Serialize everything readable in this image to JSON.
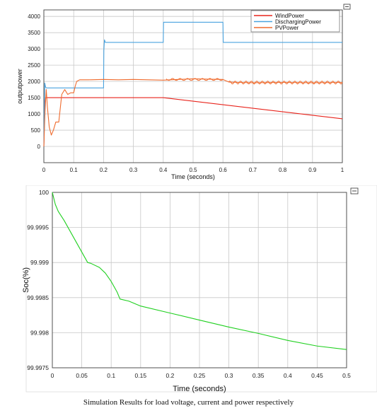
{
  "chart_data": [
    {
      "type": "line",
      "xlabel": "Time (seconds)",
      "ylabel": "outputpower",
      "xlim": [
        0,
        1
      ],
      "ylim": [
        -500,
        4200
      ],
      "x_ticks": [
        "0",
        "0.1",
        "0.2",
        "0.3",
        "0.4",
        "0.5",
        "0.6",
        "0.7",
        "0.8",
        "0.9",
        "1"
      ],
      "y_ticks": [
        "0",
        "500",
        "1000",
        "1500",
        "2000",
        "2500",
        "3000",
        "3500",
        "4000"
      ],
      "grid": true,
      "legend": "top-right",
      "series": [
        {
          "name": "WindPower",
          "color": "#e8231b",
          "x": [
            0,
            0.003,
            0.006,
            0.4,
            1.0
          ],
          "y": [
            0,
            1200,
            1500,
            1500,
            850
          ]
        },
        {
          "name": "DischargingPower",
          "color": "#4aa3df",
          "x": [
            0,
            0.003,
            0.006,
            0.008,
            0.2,
            0.201,
            0.203,
            0.206,
            0.21,
            0.4,
            0.401,
            0.6,
            0.601,
            1.0
          ],
          "y": [
            0,
            1950,
            1820,
            1800,
            1800,
            2950,
            3280,
            3200,
            3200,
            3200,
            3820,
            3820,
            3200,
            3200
          ]
        },
        {
          "name": "PVPower",
          "color": "#ef6c2f",
          "x": [
            0,
            0.004,
            0.008,
            0.012,
            0.018,
            0.025,
            0.032,
            0.04,
            0.05,
            0.06,
            0.07,
            0.08,
            0.09,
            0.1,
            0.105,
            0.11,
            0.12,
            0.15,
            0.2,
            0.25,
            0.3,
            0.35,
            0.4,
            0.45,
            0.5,
            0.55,
            0.6,
            0.62,
            0.65,
            0.7,
            0.8,
            0.9,
            1.0
          ],
          "y": [
            0,
            1100,
            1750,
            1200,
            600,
            350,
            500,
            750,
            750,
            1600,
            1750,
            1600,
            1650,
            1650,
            1850,
            2000,
            2050,
            2050,
            2060,
            2050,
            2060,
            2050,
            2040,
            2060,
            2080,
            2070,
            2060,
            1980,
            1970,
            1960,
            1970,
            1960,
            1970
          ]
        }
      ]
    },
    {
      "type": "line",
      "xlabel": "Time (seconds)",
      "ylabel": "Soc(%)",
      "xlim": [
        0,
        0.5
      ],
      "ylim": [
        99.9975,
        100
      ],
      "x_ticks": [
        "0",
        "0.05",
        "0.1",
        "0.15",
        "0.2",
        "0.25",
        "0.3",
        "0.35",
        "0.4",
        "0.45",
        "0.5"
      ],
      "y_ticks": [
        "99.9975",
        "99.998",
        "99.9985",
        "99.999",
        "99.9995",
        "100"
      ],
      "grid": true,
      "series": [
        {
          "color": "#20d020",
          "x": [
            0,
            0.005,
            0.01,
            0.02,
            0.03,
            0.04,
            0.05,
            0.06,
            0.065,
            0.08,
            0.09,
            0.1,
            0.11,
            0.115,
            0.13,
            0.15,
            0.2,
            0.25,
            0.3,
            0.35,
            0.4,
            0.45,
            0.5
          ],
          "y": [
            100,
            99.99983,
            99.99973,
            99.9996,
            99.99945,
            99.9993,
            99.99915,
            99.999,
            99.99899,
            99.99893,
            99.99885,
            99.99873,
            99.99858,
            99.99848,
            99.99845,
            99.99838,
            99.99828,
            99.99818,
            99.99808,
            99.99799,
            99.99789,
            99.99781,
            99.99776
          ]
        }
      ]
    }
  ],
  "caption": "Simulation Results for load voltage, current and power respectively"
}
